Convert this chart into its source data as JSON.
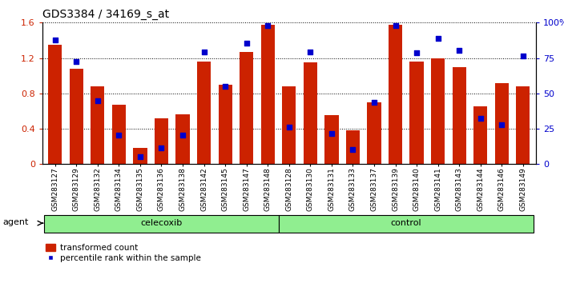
{
  "title": "GDS3384 / 34169_s_at",
  "categories": [
    "GSM283127",
    "GSM283129",
    "GSM283132",
    "GSM283134",
    "GSM283135",
    "GSM283136",
    "GSM283138",
    "GSM283142",
    "GSM283145",
    "GSM283147",
    "GSM283148",
    "GSM283128",
    "GSM283130",
    "GSM283131",
    "GSM283133",
    "GSM283137",
    "GSM283139",
    "GSM283140",
    "GSM283141",
    "GSM283143",
    "GSM283144",
    "GSM283146",
    "GSM283149"
  ],
  "red_values": [
    1.35,
    1.08,
    0.88,
    0.67,
    0.18,
    0.52,
    0.56,
    1.16,
    0.9,
    1.27,
    1.58,
    0.88,
    1.15,
    0.55,
    0.38,
    0.7,
    1.58,
    1.16,
    1.2,
    1.1,
    0.65,
    0.92,
    0.88
  ],
  "blue_values": [
    1.4,
    1.16,
    0.72,
    0.33,
    0.08,
    0.18,
    0.33,
    1.27,
    0.88,
    1.37,
    1.57,
    0.42,
    1.27,
    0.35,
    0.17,
    0.7,
    1.57,
    1.26,
    1.42,
    1.29,
    0.52,
    0.45,
    1.22
  ],
  "groups": [
    "celecoxib",
    "celecoxib",
    "celecoxib",
    "celecoxib",
    "celecoxib",
    "celecoxib",
    "celecoxib",
    "celecoxib",
    "celecoxib",
    "celecoxib",
    "celecoxib",
    "control",
    "control",
    "control",
    "control",
    "control",
    "control",
    "control",
    "control",
    "control",
    "control",
    "control",
    "control"
  ],
  "celecoxib_count": 11,
  "control_count": 12,
  "bar_color": "#cc2200",
  "dot_color": "#0000cc",
  "green_color": "#90ee90",
  "ylim_left": [
    0,
    1.6
  ],
  "ylim_right": [
    0,
    100
  ],
  "yticks_left": [
    0,
    0.4,
    0.8,
    1.2,
    1.6
  ],
  "yticks_right": [
    0,
    25,
    50,
    75,
    100
  ],
  "agent_label": "agent",
  "legend_items": [
    "transformed count",
    "percentile rank within the sample"
  ]
}
